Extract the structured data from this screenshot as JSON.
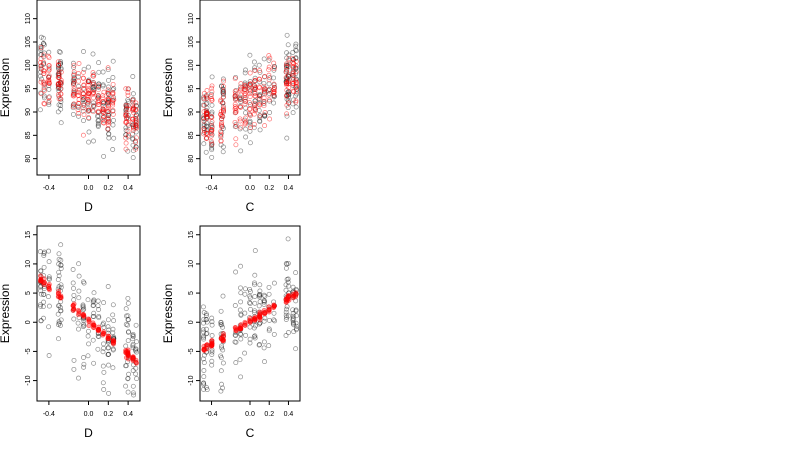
{
  "chart_data": [
    {
      "type": "scatter",
      "xlabel": "D",
      "ylabel": "Expression",
      "xticks": [
        "-0.4",
        "0.0",
        "0.2",
        "0.4"
      ],
      "yticks": [
        "80",
        "85",
        "90",
        "95",
        "100",
        "105",
        "110"
      ],
      "xlim": [
        -0.52,
        0.52
      ],
      "ylim": [
        76.5,
        114
      ],
      "trend": {
        "x0": -0.5,
        "y0": 99,
        "slope": -11.5
      },
      "series": [
        {
          "role": "observed",
          "color": "#000000",
          "spread": 4.2,
          "points": 240
        },
        {
          "role": "fitted",
          "color": "#ff0000",
          "spread": 2.6,
          "points": 240
        }
      ]
    },
    {
      "type": "scatter",
      "xlabel": "C",
      "ylabel": "Expression",
      "xticks": [
        "-0.4",
        "0.0",
        "0.2",
        "0.4"
      ],
      "yticks": [
        "80",
        "85",
        "90",
        "95",
        "100",
        "105",
        "110"
      ],
      "xlim": [
        -0.52,
        0.52
      ],
      "ylim": [
        76.5,
        114
      ],
      "trend": {
        "x0": -0.5,
        "y0": 88,
        "slope": 9.5
      },
      "series": [
        {
          "role": "observed",
          "color": "#000000",
          "spread": 4.2,
          "points": 240
        },
        {
          "role": "fitted",
          "color": "#ff0000",
          "spread": 3.2,
          "points": 240
        }
      ]
    },
    {
      "type": "scatter",
      "xlabel": "D",
      "ylabel": "Expression",
      "xticks": [
        "-0.4",
        "0.0",
        "0.2",
        "0.4"
      ],
      "yticks": [
        "-10",
        "-5",
        "0",
        "5",
        "10",
        "15"
      ],
      "xlim": [
        -0.52,
        0.52
      ],
      "ylim": [
        -13.5,
        16.5
      ],
      "trend": {
        "x0": -0.5,
        "y0": 7.5,
        "slope": -14.5
      },
      "series": [
        {
          "role": "observed",
          "color": "#000000",
          "spread": 4.0,
          "points": 220
        },
        {
          "role": "fitted",
          "color": "#ff0000",
          "spread": 0.3,
          "points": 110
        }
      ]
    },
    {
      "type": "scatter",
      "xlabel": "C",
      "ylabel": "Expression",
      "xticks": [
        "-0.4",
        "0.0",
        "0.2",
        "0.4"
      ],
      "yticks": [
        "-10",
        "-5",
        "0",
        "5",
        "10",
        "15"
      ],
      "xlim": [
        -0.52,
        0.52
      ],
      "ylim": [
        -13.5,
        16.5
      ],
      "trend": {
        "x0": -0.5,
        "y0": -4.8,
        "slope": 9.8
      },
      "series": [
        {
          "role": "observed",
          "color": "#000000",
          "spread": 4.0,
          "points": 220
        },
        {
          "role": "fitted",
          "color": "#ff0000",
          "spread": 0.3,
          "points": 110
        }
      ]
    }
  ]
}
